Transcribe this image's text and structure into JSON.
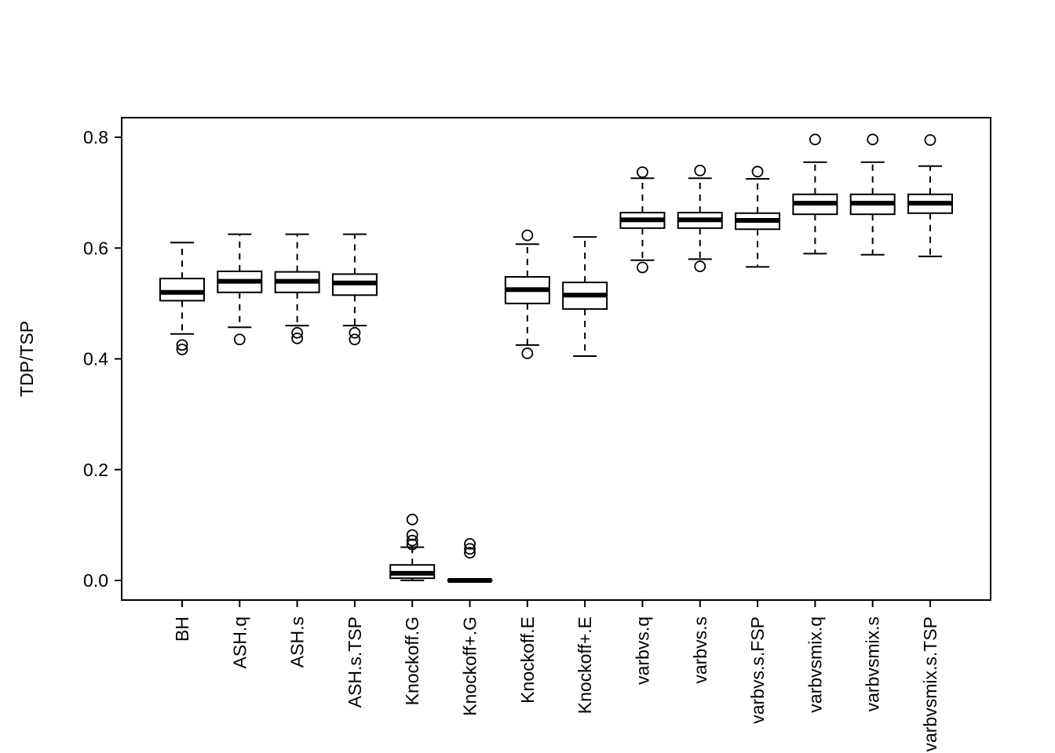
{
  "chart_data": {
    "type": "boxplot",
    "title": "",
    "xlabel": "",
    "ylabel": "TDP/TSP",
    "yticks": [
      "0.0",
      "0.2",
      "0.4",
      "0.6",
      "0.8"
    ],
    "ytick_values": [
      0.0,
      0.2,
      0.4,
      0.6,
      0.8
    ],
    "ylim": [
      -0.035,
      0.835
    ],
    "grid": false,
    "legend": "none",
    "categories": [
      "BH",
      "ASH.q",
      "ASH.s",
      "ASH.s.TSP",
      "Knockoff.G",
      "Knockoff+.G",
      "Knockoff.E",
      "Knockoff+.E",
      "varbvs.q",
      "varbvs.s",
      "varbvs.s.FSP",
      "varbvsmix.q",
      "varbvsmix.s",
      "varbvsmix.s.TSP"
    ],
    "series": [
      {
        "label": "BH",
        "whislo": 0.445,
        "q1": 0.505,
        "med": 0.52,
        "q3": 0.545,
        "whishi": 0.61,
        "outliers": [
          0.425,
          0.417
        ]
      },
      {
        "label": "ASH.q",
        "whislo": 0.457,
        "q1": 0.52,
        "med": 0.54,
        "q3": 0.558,
        "whishi": 0.625,
        "outliers": [
          0.435
        ]
      },
      {
        "label": "ASH.s",
        "whislo": 0.46,
        "q1": 0.52,
        "med": 0.54,
        "q3": 0.557,
        "whishi": 0.625,
        "outliers": [
          0.447,
          0.437
        ]
      },
      {
        "label": "ASH.s.TSP",
        "whislo": 0.46,
        "q1": 0.515,
        "med": 0.537,
        "q3": 0.553,
        "whishi": 0.625,
        "outliers": [
          0.447,
          0.435
        ]
      },
      {
        "label": "Knockoff.G",
        "whislo": 0.0,
        "q1": 0.004,
        "med": 0.013,
        "q3": 0.028,
        "whishi": 0.06,
        "outliers": [
          0.065,
          0.072,
          0.082,
          0.11
        ]
      },
      {
        "label": "Knockoff+.G",
        "whislo": 0.0,
        "q1": 0.0,
        "med": 0.0,
        "q3": 0.0,
        "whishi": 0.0,
        "outliers": [
          0.05,
          0.057,
          0.066
        ]
      },
      {
        "label": "Knockoff.E",
        "whislo": 0.425,
        "q1": 0.5,
        "med": 0.525,
        "q3": 0.548,
        "whishi": 0.607,
        "outliers": [
          0.623,
          0.41
        ]
      },
      {
        "label": "Knockoff+.E",
        "whislo": 0.405,
        "q1": 0.49,
        "med": 0.515,
        "q3": 0.538,
        "whishi": 0.62,
        "outliers": []
      },
      {
        "label": "varbvs.q",
        "whislo": 0.578,
        "q1": 0.636,
        "med": 0.651,
        "q3": 0.664,
        "whishi": 0.726,
        "outliers": [
          0.737,
          0.565
        ]
      },
      {
        "label": "varbvs.s",
        "whislo": 0.58,
        "q1": 0.636,
        "med": 0.651,
        "q3": 0.664,
        "whishi": 0.726,
        "outliers": [
          0.74,
          0.567
        ]
      },
      {
        "label": "varbvs.s.FSP",
        "whislo": 0.566,
        "q1": 0.634,
        "med": 0.65,
        "q3": 0.663,
        "whishi": 0.725,
        "outliers": [
          0.738
        ]
      },
      {
        "label": "varbvsmix.q",
        "whislo": 0.59,
        "q1": 0.661,
        "med": 0.681,
        "q3": 0.697,
        "whishi": 0.755,
        "outliers": [
          0.796
        ]
      },
      {
        "label": "varbvsmix.s",
        "whislo": 0.588,
        "q1": 0.661,
        "med": 0.681,
        "q3": 0.697,
        "whishi": 0.755,
        "outliers": [
          0.796
        ]
      },
      {
        "label": "varbvsmix.s.TSP",
        "whislo": 0.585,
        "q1": 0.663,
        "med": 0.681,
        "q3": 0.697,
        "whishi": 0.748,
        "outliers": [
          0.795
        ]
      }
    ],
    "colors": {
      "box_fill": "#ffffff",
      "stroke": "#000000",
      "background": "#ffffff"
    }
  }
}
